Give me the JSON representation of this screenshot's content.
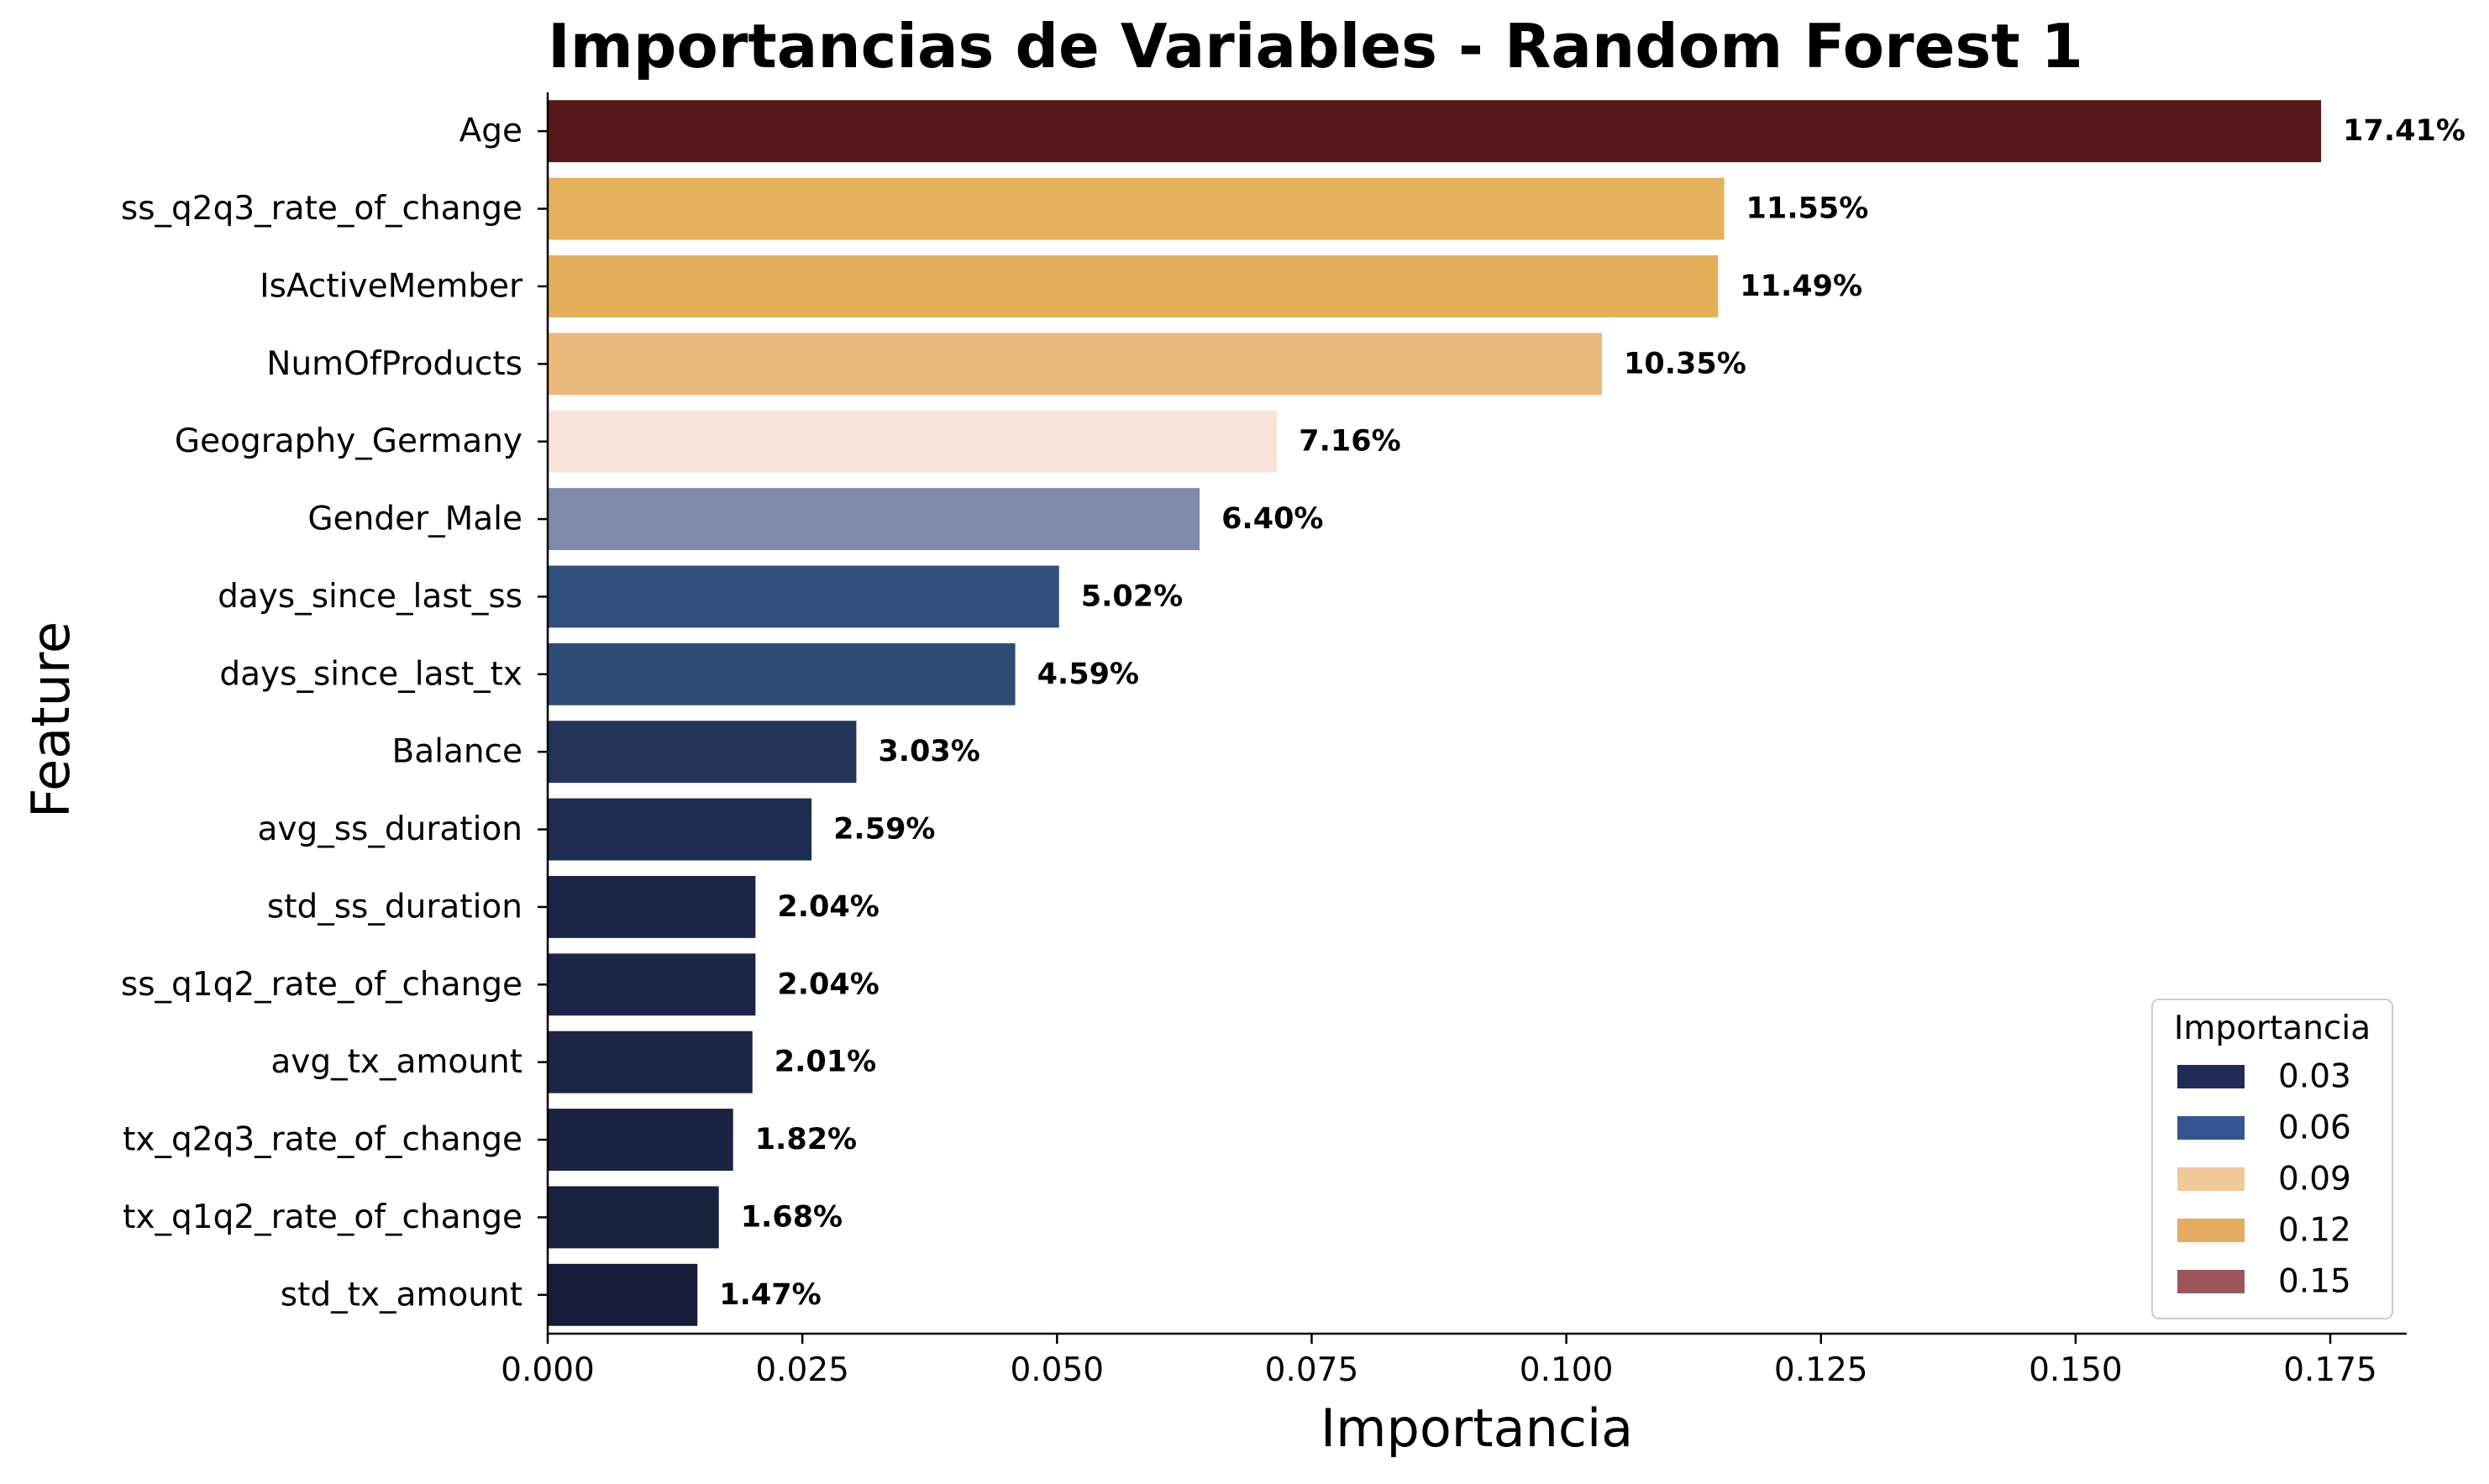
{
  "chart_data": {
    "type": "bar",
    "orientation": "horizontal",
    "title": "Importancias de Variables - Random Forest 1",
    "xlabel": "Importancia",
    "ylabel": "Feature",
    "xlim": [
      0,
      0.1825
    ],
    "xticks": [
      0.0,
      0.025,
      0.05,
      0.075,
      0.1,
      0.125,
      0.15,
      0.175
    ],
    "xtick_labels": [
      "0.000",
      "0.025",
      "0.050",
      "0.075",
      "0.100",
      "0.125",
      "0.150",
      "0.175"
    ],
    "grid": false,
    "categories": [
      "Age",
      "ss_q2q3_rate_of_change",
      "IsActiveMember",
      "NumOfProducts",
      "Geography_Germany",
      "Gender_Male",
      "days_since_last_ss",
      "days_since_last_tx",
      "Balance",
      "avg_ss_duration",
      "std_ss_duration",
      "ss_q1q2_rate_of_change",
      "avg_tx_amount",
      "tx_q2q3_rate_of_change",
      "tx_q1q2_rate_of_change",
      "std_tx_amount"
    ],
    "values": [
      0.1741,
      0.1155,
      0.1149,
      0.1035,
      0.0716,
      0.064,
      0.0502,
      0.0459,
      0.0303,
      0.0259,
      0.0204,
      0.0204,
      0.0201,
      0.0182,
      0.0168,
      0.0147
    ],
    "value_labels": [
      "17.41%",
      "11.55%",
      "11.49%",
      "10.35%",
      "7.16%",
      "6.40%",
      "5.02%",
      "4.59%",
      "3.03%",
      "2.59%",
      "2.04%",
      "2.04%",
      "2.01%",
      "1.82%",
      "1.68%",
      "1.47%"
    ],
    "bar_colors": [
      "#561819",
      "#e4b05b",
      "#e3af5a",
      "#ebb97c",
      "#f8e3d8",
      "#7d8aaa",
      "#304f7f",
      "#2f4b78",
      "#233558",
      "#1e2d52",
      "#1b2548",
      "#1b2547",
      "#1b2546",
      "#1a2343",
      "#19223f",
      "#161d3a"
    ],
    "legend": {
      "title": "Importancia",
      "placement": "lower-right",
      "entries": [
        {
          "label": "0.03",
          "color": "#1f2c55"
        },
        {
          "label": "0.06",
          "color": "#34558f"
        },
        {
          "label": "0.09",
          "color": "#f1c89a"
        },
        {
          "label": "0.12",
          "color": "#e3ac5e"
        },
        {
          "label": "0.15",
          "color": "#9c5558"
        }
      ]
    }
  }
}
